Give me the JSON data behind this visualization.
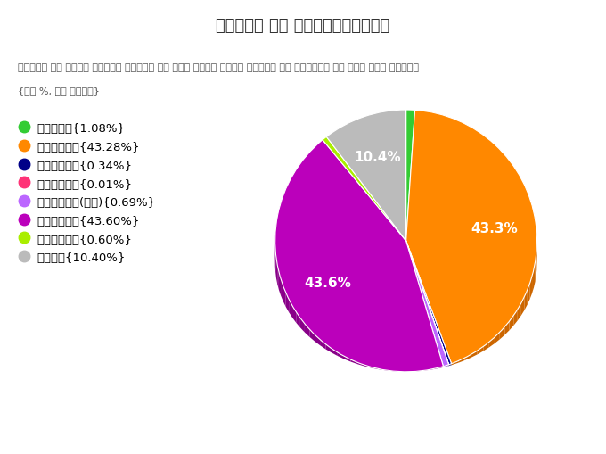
{
  "title": "दलवार मत हिस्सेदारी",
  "subtitle_line1": "कृपया और अधिक विवरण देखने के लिए अपना माउस चार्ट या लीजेंड के ऊपर मूव करें।",
  "subtitle_line2": "{मत %, मत गणना}",
  "labels": [
    "एएएपी{1.08%}",
    "बीजेपी{43.28%}",
    "बीएसपी{0.34%}",
    "सीपीआई{0.01%}",
    "सीपीआई(एम){0.69%}",
    "आईएनसी{43.60%}",
    "एनओटीए{0.60%}",
    "अन्य{10.40%}"
  ],
  "values": [
    1.08,
    43.28,
    0.34,
    0.01,
    0.69,
    43.6,
    0.6,
    10.4
  ],
  "colors": [
    "#33cc33",
    "#ff8800",
    "#000088",
    "#ff3377",
    "#bb66ff",
    "#bb00bb",
    "#aaee00",
    "#bbbbbb"
  ],
  "pct_labels": [
    "",
    "43.3%",
    "",
    "",
    "",
    "43.6%",
    "",
    "10.4%"
  ],
  "startangle": 90,
  "background_color": "#ffffff",
  "title_fontsize": 13,
  "legend_fontsize": 9.5,
  "pct_fontsize": 11
}
